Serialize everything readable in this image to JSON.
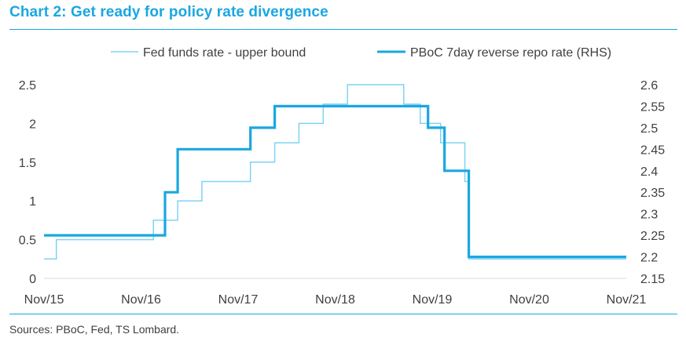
{
  "title": "Chart 2: Get ready for policy rate divergence",
  "source": "Sources: PBoC, Fed, TS Lombard.",
  "colors": {
    "accent": "#1aa7e0",
    "fed_line": "#7fd3f2",
    "pboc_line": "#1aa7e0",
    "text": "#404040"
  },
  "chart_data": {
    "type": "line",
    "title": "Chart 2: Get ready for policy rate divergence",
    "xlabel": "",
    "ylabel": "",
    "x_ticks": [
      "Nov/15",
      "Nov/16",
      "Nov/17",
      "Nov/18",
      "Nov/19",
      "Nov/20",
      "Nov/21"
    ],
    "x_range": [
      2015.833,
      2021.833
    ],
    "y_left_ticks": [
      "0",
      "0.5",
      "1",
      "1.5",
      "2",
      "2.5"
    ],
    "y_left_range": [
      0,
      2.5
    ],
    "y_right_ticks": [
      "2.15",
      "2.2",
      "2.25",
      "2.3",
      "2.35",
      "2.4",
      "2.45",
      "2.5",
      "2.55",
      "2.6"
    ],
    "y_right_range": [
      2.15,
      2.6
    ],
    "legend_position": "top-center",
    "series": [
      {
        "name": "Fed funds rate - upper bound",
        "axis": "left",
        "step": true,
        "points": [
          [
            2015.833,
            0.25
          ],
          [
            2015.96,
            0.5
          ],
          [
            2016.96,
            0.75
          ],
          [
            2017.21,
            1.0
          ],
          [
            2017.46,
            1.25
          ],
          [
            2017.96,
            1.5
          ],
          [
            2018.21,
            1.75
          ],
          [
            2018.46,
            2.0
          ],
          [
            2018.71,
            2.25
          ],
          [
            2018.96,
            2.5
          ],
          [
            2019.54,
            2.25
          ],
          [
            2019.71,
            2.0
          ],
          [
            2019.92,
            1.75
          ],
          [
            2020.17,
            1.25
          ],
          [
            2020.21,
            0.25
          ],
          [
            2021.833,
            0.25
          ]
        ]
      },
      {
        "name": "PBoC 7day reverse repo rate (RHS)",
        "axis": "right",
        "step": true,
        "points": [
          [
            2015.833,
            2.25
          ],
          [
            2017.08,
            2.35
          ],
          [
            2017.21,
            2.45
          ],
          [
            2017.96,
            2.5
          ],
          [
            2018.21,
            2.55
          ],
          [
            2019.79,
            2.5
          ],
          [
            2019.96,
            2.4
          ],
          [
            2020.21,
            2.2
          ],
          [
            2021.833,
            2.2
          ]
        ]
      }
    ]
  }
}
